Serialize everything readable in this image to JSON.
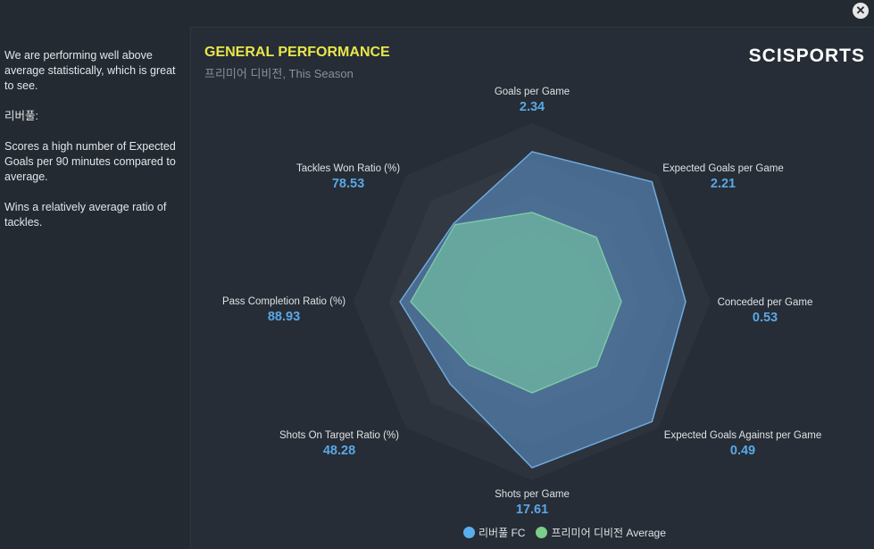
{
  "sidebar": {
    "paragraphs": [
      "We are performing well above average statistically, which is great to see.",
      "리버풀:",
      "Scores a high number of Expected Goals per 90 minutes compared to average.",
      "Wins a relatively average ratio of tackles."
    ]
  },
  "logo": "SCISPORTS",
  "close_icon": "close-icon",
  "chart_data": {
    "type": "radar",
    "title": "GENERAL PERFORMANCE",
    "subtitle": "프리미어 디비전, This Season",
    "axes": [
      "Goals per Game",
      "Expected Goals per Game",
      "Conceded per Game",
      "Expected Goals Against per Game",
      "Shots per Game",
      "Shots On Target Ratio (%)",
      "Pass Completion Ratio (%)",
      "Tackles Won Ratio (%)"
    ],
    "value_labels": [
      "2.34",
      "2.21",
      "0.53",
      "0.49",
      "17.61",
      "48.28",
      "88.93",
      "78.53"
    ],
    "range": [
      0,
      1
    ],
    "rings": 5,
    "series": [
      {
        "name": "리버풀 FC",
        "color": "#5aaef0",
        "values": [
          0.84,
          0.95,
          0.86,
          0.95,
          0.93,
          0.65,
          0.74,
          0.62
        ]
      },
      {
        "name": "프리미어 디비전 Average",
        "color": "#7ccc8a",
        "values": [
          0.5,
          0.51,
          0.5,
          0.51,
          0.51,
          0.5,
          0.68,
          0.61
        ]
      }
    ],
    "legend": "bottom"
  }
}
